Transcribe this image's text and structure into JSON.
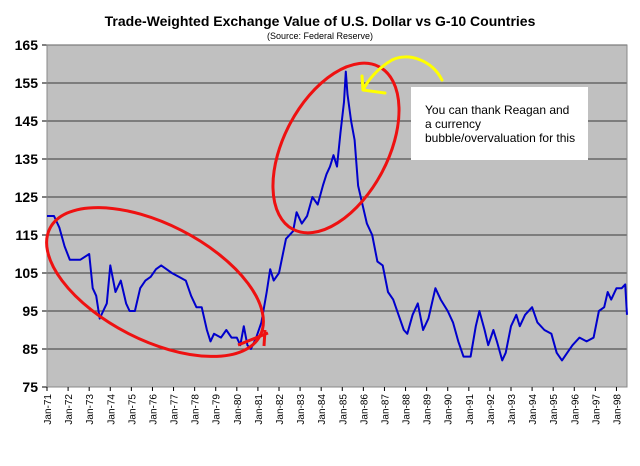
{
  "chart_data": {
    "type": "line",
    "title": "Trade-Weighted Exchange Value of U.S. Dollar vs G-10 Countries",
    "subtitle": "(Source: Federal Reserve)",
    "xlabel": "",
    "ylabel": "",
    "ylim": [
      75,
      165
    ],
    "yticks": [
      "165",
      "155",
      "145",
      "135",
      "125",
      "115",
      "105",
      "95",
      "85",
      "75"
    ],
    "xlim": [
      "1971-01",
      "1998-07"
    ],
    "xticks": [
      "Jan-71",
      "Jan-72",
      "Jan-73",
      "Jan-74",
      "Jan-75",
      "Jan-76",
      "Jan-77",
      "Jan-78",
      "Jan-79",
      "Jan-80",
      "Jan-81",
      "Jan-82",
      "Jan-83",
      "Jan-84",
      "Jan-85",
      "Jan-86",
      "Jan-87",
      "Jan-88",
      "Jan-89",
      "Jan-90",
      "Jan-91",
      "Jan-92",
      "Jan-93",
      "Jan-94",
      "Jan-95",
      "Jan-96",
      "Jan-97",
      "Jan-98"
    ],
    "grid": true,
    "colors": {
      "line": "#0000cc",
      "plot_bg": "#c0c0c0",
      "grid": "#555555",
      "circle": "#ee1111",
      "arrow": "#ffff00"
    },
    "series": [
      {
        "x": [
          "1971-01",
          "1971-05",
          "1971-08",
          "1971-11",
          "1972-02",
          "1972-08",
          "1973-01",
          "1973-03",
          "1973-05",
          "1973-07",
          "1973-09",
          "1973-11",
          "1974-01",
          "1974-04",
          "1974-07",
          "1974-10",
          "1974-12",
          "1975-03",
          "1975-06",
          "1975-09",
          "1975-12",
          "1976-03",
          "1976-06",
          "1976-09",
          "1976-12",
          "1977-04",
          "1977-08",
          "1977-11",
          "1978-02",
          "1978-05",
          "1978-08",
          "1978-10",
          "1978-12",
          "1979-04",
          "1979-07",
          "1979-10",
          "1980-01",
          "1980-03",
          "1980-05",
          "1980-07",
          "1980-09",
          "1980-12",
          "1981-03",
          "1981-06",
          "1981-08",
          "1981-10",
          "1982-01",
          "1982-05",
          "1982-09",
          "1982-11",
          "1983-02",
          "1983-05",
          "1983-08",
          "1983-11",
          "1984-02",
          "1984-04",
          "1984-06",
          "1984-08",
          "1984-10",
          "1984-12",
          "1985-02",
          "1985-03",
          "1985-04",
          "1985-06",
          "1985-08",
          "1985-10",
          "1985-12",
          "1986-03",
          "1986-06",
          "1986-09",
          "1986-12",
          "1987-03",
          "1987-06",
          "1987-09",
          "1987-12",
          "1988-02",
          "1988-05",
          "1988-08",
          "1988-11",
          "1989-02",
          "1989-06",
          "1989-09",
          "1990-01",
          "1990-04",
          "1990-07",
          "1990-10",
          "1991-02",
          "1991-05",
          "1991-07",
          "1991-10",
          "1991-12",
          "1992-03",
          "1992-05",
          "1992-08",
          "1992-10",
          "1993-01",
          "1993-04",
          "1993-06",
          "1993-09",
          "1994-01",
          "1994-04",
          "1994-08",
          "1994-12",
          "1995-03",
          "1995-06",
          "1995-09",
          "1995-12",
          "1996-04",
          "1996-08",
          "1996-12",
          "1997-03",
          "1997-06",
          "1997-08",
          "1997-10",
          "1998-01",
          "1998-04",
          "1998-06",
          "1998-07"
        ],
        "y": [
          120,
          120,
          117,
          112,
          108.5,
          108.5,
          110,
          101,
          99,
          93,
          95,
          97,
          107,
          100,
          103,
          97,
          95,
          95,
          101,
          103,
          104,
          106,
          107,
          106,
          105,
          104,
          103,
          99,
          96,
          96,
          90,
          87,
          89,
          88,
          90,
          88,
          88,
          86,
          91,
          86,
          85,
          88,
          92,
          100,
          106,
          103,
          105,
          114,
          116,
          121,
          118,
          120,
          125,
          123,
          128,
          131,
          133,
          136,
          133,
          142,
          150,
          158,
          152,
          145,
          140,
          128,
          124,
          118,
          115,
          108,
          107,
          100,
          98,
          94,
          90,
          89,
          94,
          97,
          90,
          93,
          101,
          98,
          95,
          92,
          87,
          83,
          83,
          91,
          95,
          90,
          86,
          90,
          87,
          82,
          84,
          91,
          94,
          91,
          94,
          96,
          92,
          90,
          89,
          84,
          82,
          84,
          86,
          88,
          87,
          88,
          95,
          96,
          100,
          98,
          101,
          101,
          102,
          94
        ]
      }
    ],
    "annotations": {
      "note": "You can thank Reagan and a currency bubble/overvaluation for this"
    }
  }
}
